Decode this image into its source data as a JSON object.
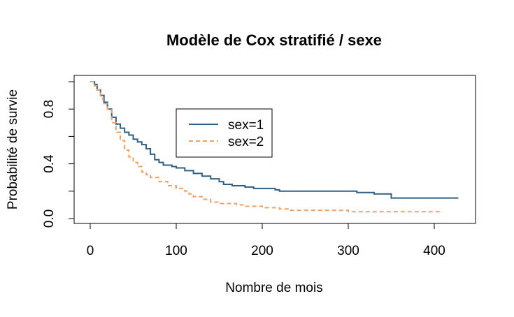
{
  "chart_data": {
    "type": "line",
    "step": true,
    "title": "Modèle de Cox stratifié / sexe",
    "xlabel": "Nombre de mois",
    "ylabel": "Probabilité de survie",
    "xlim": [
      0,
      430
    ],
    "ylim": [
      0,
      1
    ],
    "x_ticks": [
      0,
      100,
      200,
      300,
      400
    ],
    "x_tick_labels": [
      "0",
      "100",
      "200",
      "300",
      "400"
    ],
    "y_ticks": [
      0.0,
      0.2,
      0.4,
      0.6,
      0.8,
      1.0
    ],
    "y_tick_labels": [
      "0.0",
      "",
      "0.4",
      "",
      "0.8",
      ""
    ],
    "grid": false,
    "legend_position": "upper-center",
    "series": [
      {
        "name": "sex=1",
        "color": "#2E5F86",
        "dash": "solid",
        "points": [
          [
            0,
            1.0
          ],
          [
            5,
            0.98
          ],
          [
            8,
            0.94
          ],
          [
            12,
            0.9
          ],
          [
            16,
            0.85
          ],
          [
            20,
            0.8
          ],
          [
            25,
            0.74
          ],
          [
            30,
            0.69
          ],
          [
            35,
            0.66
          ],
          [
            40,
            0.63
          ],
          [
            45,
            0.61
          ],
          [
            50,
            0.58
          ],
          [
            55,
            0.56
          ],
          [
            60,
            0.54
          ],
          [
            65,
            0.51
          ],
          [
            70,
            0.47
          ],
          [
            75,
            0.43
          ],
          [
            80,
            0.41
          ],
          [
            85,
            0.39
          ],
          [
            95,
            0.38
          ],
          [
            100,
            0.37
          ],
          [
            110,
            0.35
          ],
          [
            120,
            0.33
          ],
          [
            130,
            0.31
          ],
          [
            140,
            0.29
          ],
          [
            150,
            0.27
          ],
          [
            155,
            0.25
          ],
          [
            165,
            0.24
          ],
          [
            180,
            0.23
          ],
          [
            190,
            0.22
          ],
          [
            200,
            0.22
          ],
          [
            215,
            0.21
          ],
          [
            220,
            0.2
          ],
          [
            290,
            0.2
          ],
          [
            310,
            0.19
          ],
          [
            330,
            0.18
          ],
          [
            350,
            0.15
          ],
          [
            428,
            0.15
          ]
        ]
      },
      {
        "name": "sex=2",
        "color": "#F5A05F",
        "dash": "dashed",
        "points": [
          [
            0,
            1.0
          ],
          [
            5,
            0.97
          ],
          [
            8,
            0.94
          ],
          [
            12,
            0.88
          ],
          [
            15,
            0.84
          ],
          [
            20,
            0.8
          ],
          [
            25,
            0.7
          ],
          [
            30,
            0.63
          ],
          [
            35,
            0.57
          ],
          [
            40,
            0.5
          ],
          [
            45,
            0.45
          ],
          [
            50,
            0.41
          ],
          [
            55,
            0.38
          ],
          [
            60,
            0.34
          ],
          [
            65,
            0.32
          ],
          [
            70,
            0.3
          ],
          [
            80,
            0.27
          ],
          [
            90,
            0.24
          ],
          [
            100,
            0.22
          ],
          [
            110,
            0.2
          ],
          [
            115,
            0.18
          ],
          [
            120,
            0.16
          ],
          [
            130,
            0.14
          ],
          [
            140,
            0.12
          ],
          [
            150,
            0.11
          ],
          [
            170,
            0.1
          ],
          [
            180,
            0.09
          ],
          [
            200,
            0.08
          ],
          [
            220,
            0.07
          ],
          [
            230,
            0.06
          ],
          [
            290,
            0.06
          ],
          [
            300,
            0.05
          ],
          [
            410,
            0.05
          ]
        ]
      }
    ]
  }
}
